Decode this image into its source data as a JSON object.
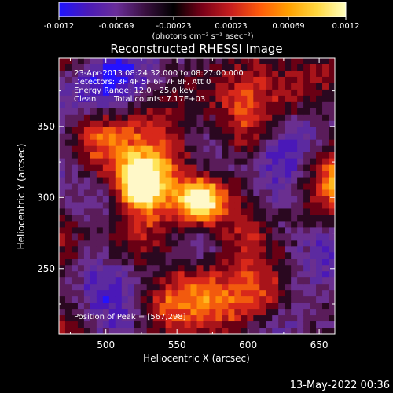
{
  "colorbar": {
    "ticks": [
      "-0.0012",
      "-0.00069",
      "-0.00023",
      "0.00023",
      "0.00069",
      "0.0012"
    ],
    "unit_label": "(photons cm⁻² s⁻¹ asec⁻²)",
    "colors": [
      "#1e14ff",
      "#4a1ab8",
      "#6a2d9a",
      "#3a1040",
      "#000000",
      "#7a0018",
      "#c81e1e",
      "#ff5a0a",
      "#ffa000",
      "#ffd840",
      "#ffffc0"
    ]
  },
  "info": {
    "time": "23-Apr-2013 08:24:32.000 to 08:27:00.000",
    "detectors": "Detectors: 3F 4F 5F 6F 7F 8F, Att 0",
    "energy": "Energy Range: 12.0 - 25.0 keV",
    "clean": "Clean",
    "counts": "Total counts: 7.17E+03",
    "peak": "Position of Peak = [567,298]"
  },
  "footer": {
    "date": "13-May-2022 00:36"
  },
  "chart_data": {
    "type": "heatmap",
    "title": "Reconstructed RHESSI Image",
    "xlabel": "Heliocentric X (arcsec)",
    "ylabel": "Heliocentric Y (arcsec)",
    "xlim": [
      467,
      661
    ],
    "ylim": [
      204,
      398
    ],
    "xticks": [
      500,
      550,
      600,
      650
    ],
    "yticks": [
      250,
      300,
      350
    ],
    "color_range": [
      -0.0012,
      0.0012
    ],
    "peak": {
      "x": 567,
      "y": 298
    }
  }
}
